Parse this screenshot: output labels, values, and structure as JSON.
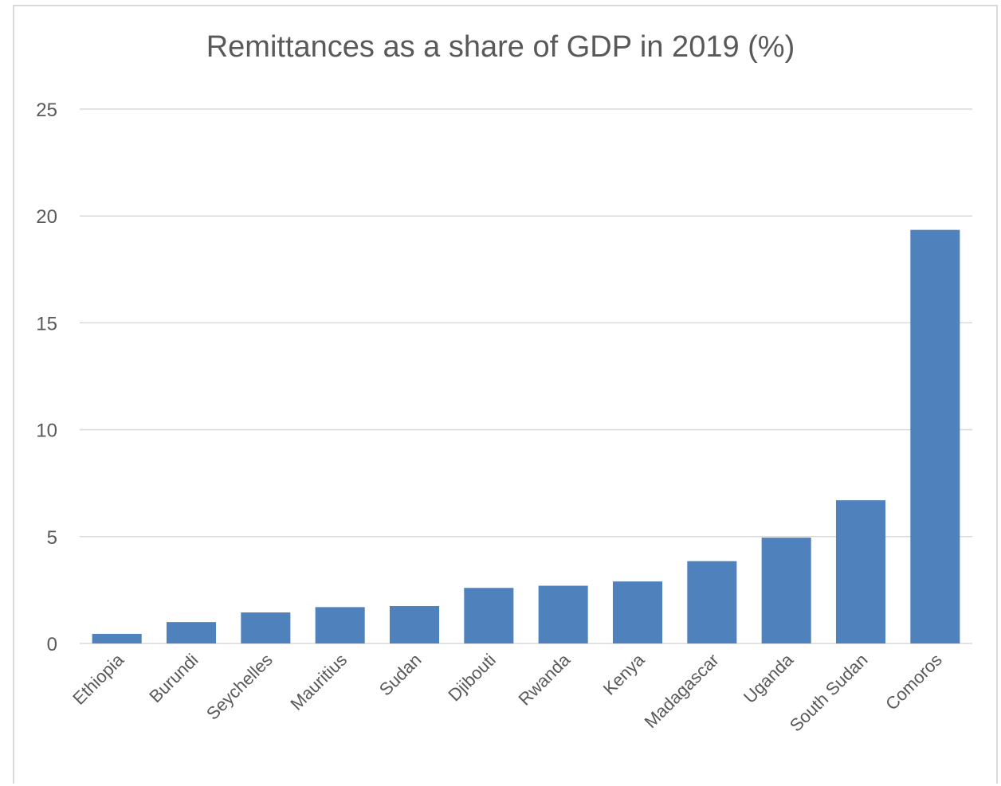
{
  "chart_data": {
    "type": "bar",
    "title": "Remittances as a share of GDP in 2019 (%)",
    "xlabel": "",
    "ylabel": "",
    "categories": [
      "Ethiopia",
      "Burundi",
      "Seychelles",
      "Mauritius",
      "Sudan",
      "Djibouti",
      "Rwanda",
      "Kenya",
      "Madagascar",
      "Uganda",
      "South Sudan",
      "Comoros"
    ],
    "values": [
      0.45,
      1.0,
      1.45,
      1.7,
      1.75,
      2.6,
      2.7,
      2.9,
      3.85,
      4.95,
      6.7,
      19.35
    ],
    "ylim": [
      0,
      25
    ],
    "yticks": [
      0,
      5,
      10,
      15,
      20,
      25
    ],
    "grid": true,
    "legend": "none",
    "bar_color": "#4f81bd",
    "grid_color": "#d9d9d9"
  }
}
